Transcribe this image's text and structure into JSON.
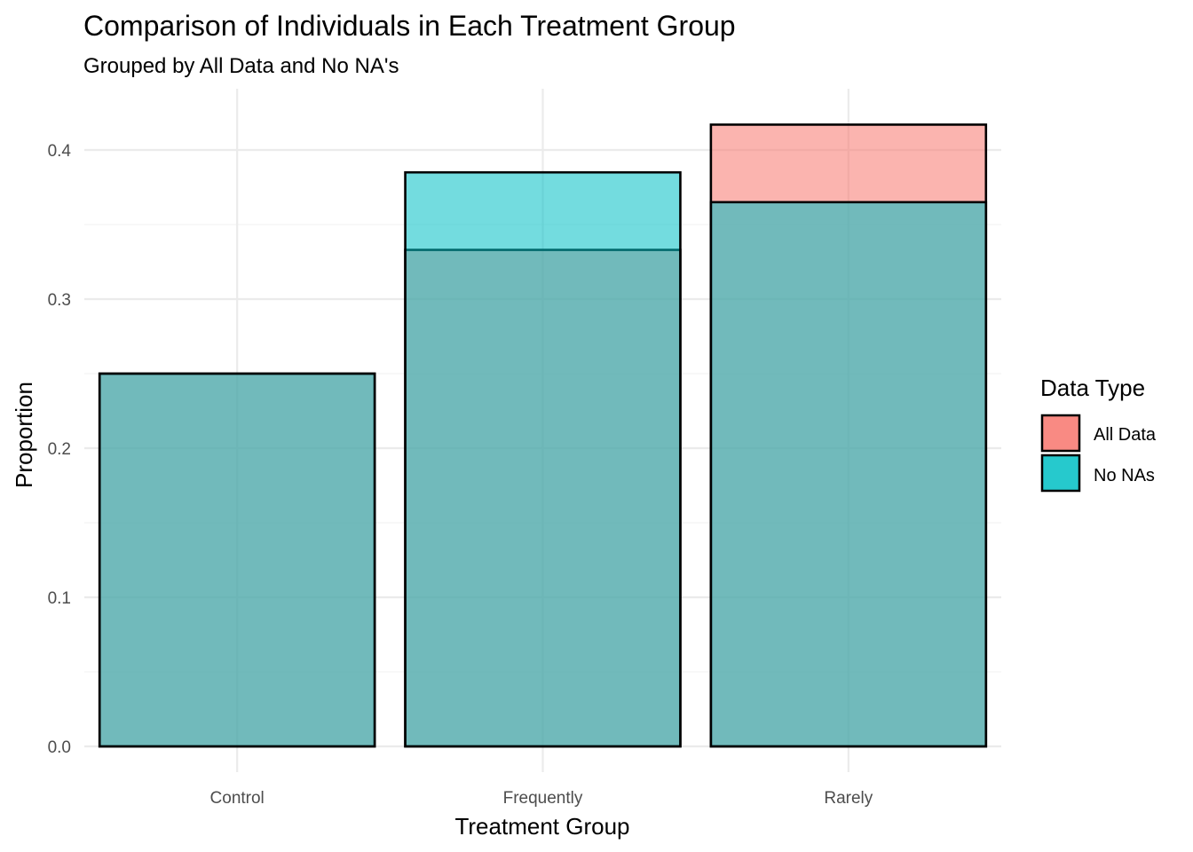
{
  "chart_data": {
    "type": "bar",
    "title": "Comparison of Individuals in Each Treatment Group",
    "subtitle": "Grouped by All Data and No NA's",
    "xlabel": "Treatment Group",
    "ylabel": "Proportion",
    "categories": [
      "Control",
      "Frequently",
      "Rarely"
    ],
    "series": [
      {
        "name": "All Data",
        "values": [
          0.25,
          0.333,
          0.417
        ],
        "color": "#F8766D"
      },
      {
        "name": "No NAs",
        "values": [
          0.25,
          0.385,
          0.365
        ],
        "color": "#00BFC4"
      }
    ],
    "ylim": [
      0,
      0.43
    ],
    "yticks": [
      "0.0",
      "0.1",
      "0.2",
      "0.3",
      "0.4"
    ],
    "legend": {
      "title": "Data Type",
      "position": "right"
    },
    "bar_style": "overlapping, semi-transparent with black outline",
    "grid": true
  }
}
